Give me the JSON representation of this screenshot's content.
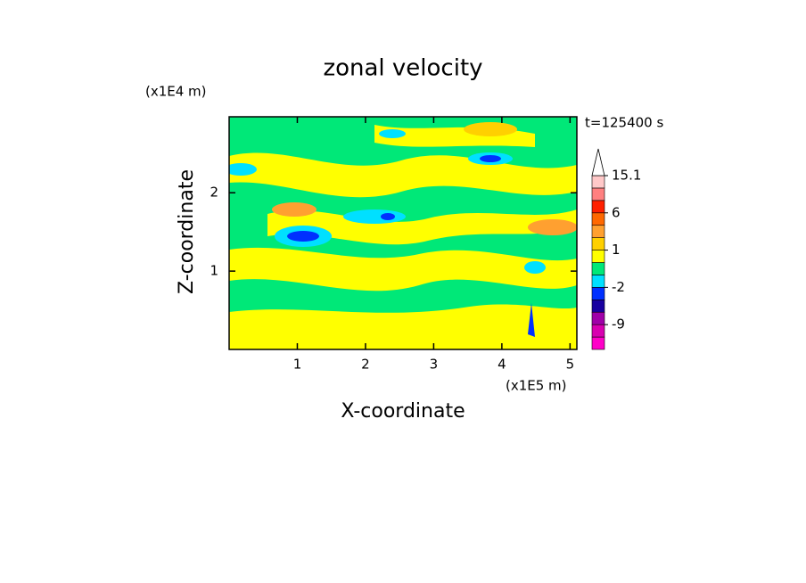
{
  "chart_data": {
    "type": "contour",
    "title": "zonal velocity",
    "x_label": "X-coordinate",
    "y_label": "Z-coordinate",
    "x_unit": "(x1E5 m)",
    "y_unit": "(x1E4 m)",
    "annotation": "t=125400 s",
    "xlim": [
      0,
      5.1
    ],
    "xticks": [
      1,
      2,
      3,
      4,
      5
    ],
    "ylim": [
      0,
      2.97
    ],
    "yticks": [
      1,
      2
    ],
    "colorbar": {
      "colors": [
        "#ff00c8",
        "#d800b0",
        "#a000a8",
        "#1800a0",
        "#0030ff",
        "#00e0ff",
        "#00e878",
        "#ffff00",
        "#ffd000",
        "#ffa030",
        "#ff6800",
        "#ff2000",
        "#ff8080",
        "#ffc8c8"
      ],
      "labels": [
        null,
        -9,
        null,
        null,
        -2,
        null,
        null,
        1,
        null,
        null,
        6,
        null,
        null,
        15.1
      ]
    }
  }
}
